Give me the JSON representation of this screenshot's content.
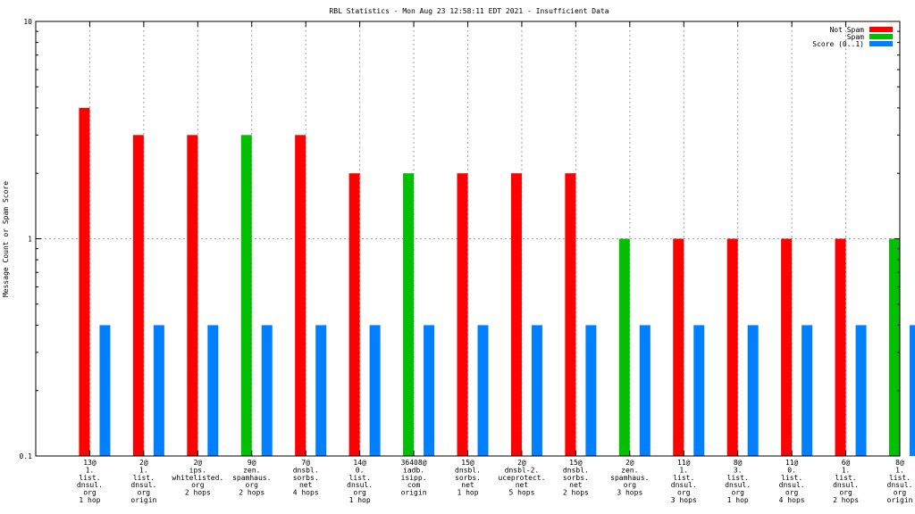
{
  "chart_data": {
    "type": "bar",
    "title": "RBL Statistics - Mon Aug 23 12:58:11 EDT 2021 - Insufficient Data",
    "ylabel": "Message Count or Spam Score",
    "xlabel": "",
    "y_scale": "log",
    "ylim": [
      0.1,
      10
    ],
    "y_ticks": [
      "0.1",
      "1",
      "10"
    ],
    "grid": true,
    "legend_position": "top-right",
    "series": [
      {
        "name": "Not Spam",
        "color": "#ff0000",
        "values": [
          4,
          3,
          3,
          null,
          3,
          2,
          null,
          2,
          2,
          2,
          null,
          1,
          1,
          1,
          1,
          null
        ]
      },
      {
        "name": "Spam",
        "color": "#00c000",
        "values": [
          null,
          null,
          null,
          3,
          null,
          null,
          2,
          null,
          null,
          null,
          1,
          null,
          null,
          null,
          null,
          1
        ]
      },
      {
        "name": "Score (0..1)",
        "color": "#0080ff",
        "values": [
          0.4,
          0.4,
          0.4,
          0.4,
          0.4,
          0.4,
          0.4,
          0.4,
          0.4,
          0.4,
          0.4,
          0.4,
          0.4,
          0.4,
          0.4,
          0.4
        ]
      }
    ],
    "categories": [
      [
        "13@",
        "1.",
        "list.",
        "dnsul.",
        "org",
        "1 hop"
      ],
      [
        "2@",
        "1.",
        "list.",
        "dnsul.",
        "org",
        "origin"
      ],
      [
        "2@",
        "ips.",
        "whitelisted.",
        "org",
        "2 hops"
      ],
      [
        "9@",
        "zen.",
        "spamhaus.",
        "org",
        "2 hops"
      ],
      [
        "7@",
        "dnsbl.",
        "sorbs.",
        "net",
        "4 hops"
      ],
      [
        "14@",
        "0.",
        "list.",
        "dnsul.",
        "org",
        "1 hop"
      ],
      [
        "36408@",
        "iadb.",
        "isipp.",
        "com",
        "origin"
      ],
      [
        "15@",
        "dnsbl.",
        "sorbs.",
        "net",
        "1 hop"
      ],
      [
        "2@",
        "dnsbl-2.",
        "uceprotect.",
        "net",
        "5 hops"
      ],
      [
        "15@",
        "dnsbl.",
        "sorbs.",
        "net",
        "2 hops"
      ],
      [
        "2@",
        "zen.",
        "spamhaus.",
        "org",
        "3 hops"
      ],
      [
        "11@",
        "1.",
        "list.",
        "dnsul.",
        "org",
        "3 hops"
      ],
      [
        "8@",
        "3.",
        "list.",
        "dnsul.",
        "org",
        "1 hop"
      ],
      [
        "11@",
        "0.",
        "list.",
        "dnsul.",
        "org",
        "4 hops"
      ],
      [
        "6@",
        "1.",
        "list.",
        "dnsul.",
        "org",
        "2 hops"
      ],
      [
        "8@",
        "1.",
        "list.",
        "dnsul.",
        "org",
        "origin"
      ]
    ]
  }
}
